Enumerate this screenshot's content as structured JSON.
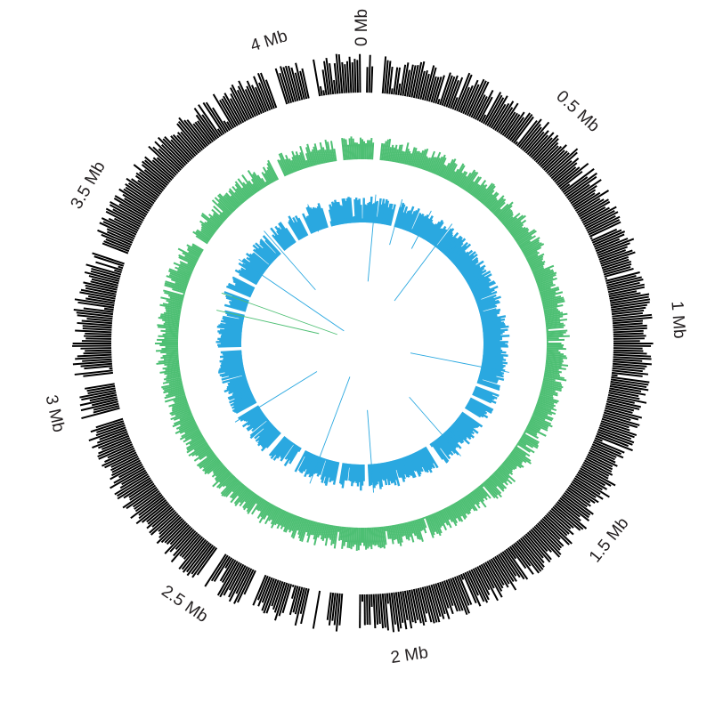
{
  "chart_data": {
    "type": "circular-genome-map",
    "units": "Mb",
    "genome_length_mb": 4.2,
    "tick_labels": [
      {
        "position_mb": 0,
        "text": "0 Mb"
      },
      {
        "position_mb": 0.5,
        "text": "0.5 Mb"
      },
      {
        "position_mb": 1,
        "text": "1 Mb"
      },
      {
        "position_mb": 1.5,
        "text": "1.5 Mb"
      },
      {
        "position_mb": 2,
        "text": "2 Mb"
      },
      {
        "position_mb": 2.5,
        "text": "2.5 Mb"
      },
      {
        "position_mb": 3,
        "text": "3 Mb"
      },
      {
        "position_mb": 3.5,
        "text": "3.5 Mb"
      },
      {
        "position_mb": 4,
        "text": "4 Mb"
      }
    ],
    "tracks": [
      {
        "id": "outer",
        "color": "#000000",
        "bins": 700,
        "typical_value": 0.8,
        "gaps_mb": [
          0.0,
          0.04,
          2.12,
          2.14,
          2.2,
          2.23,
          2.38,
          2.5,
          2.96,
          3.06,
          3.38,
          3.98,
          4.07
        ]
      },
      {
        "id": "middle",
        "color": "#4dbf73",
        "bins": 700,
        "typical_value": 0.55,
        "gaps_mb": [
          0.05,
          3.52,
          3.9,
          4.12
        ]
      },
      {
        "id": "inner",
        "color": "#2aa8e0",
        "bins": 600,
        "typical_value": 0.75,
        "gaps_mb": [
          0.17,
          1.28,
          1.35,
          1.44,
          1.72,
          2.08,
          2.22,
          2.44,
          2.58,
          2.8,
          3.12,
          3.32,
          3.4,
          3.48,
          3.72,
          3.82,
          3.9,
          4.02
        ]
      }
    ]
  }
}
